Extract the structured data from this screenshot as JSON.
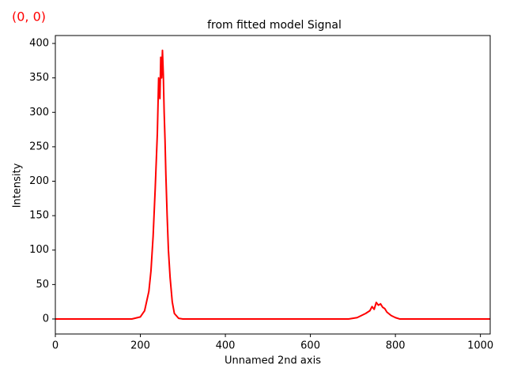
{
  "chart_data": {
    "type": "line",
    "title": "from fitted model Signal",
    "annotation": "(0, 0)",
    "x_label": "Unnamed 2nd axis",
    "y_label": "Intensity",
    "xlim": [
      0,
      1023
    ],
    "ylim": [
      -21.8,
      411.5
    ],
    "xticks": [
      0,
      200,
      400,
      600,
      800,
      1000
    ],
    "yticks": [
      0,
      50,
      100,
      150,
      200,
      250,
      300,
      350,
      400
    ],
    "grid": false,
    "series": [
      {
        "color": "#ff0000",
        "x": [
          0,
          100,
          180,
          200,
          210,
          220,
          225,
          230,
          235,
          240,
          243,
          246,
          248,
          250,
          252,
          254,
          256,
          258,
          260,
          263,
          266,
          270,
          275,
          280,
          290,
          300,
          400,
          600,
          690,
          700,
          710,
          720,
          730,
          740,
          745,
          750,
          755,
          760,
          765,
          770,
          775,
          780,
          790,
          800,
          810,
          900,
          1023
        ],
        "values": [
          0,
          0,
          0,
          3,
          12,
          40,
          70,
          120,
          190,
          270,
          350,
          320,
          380,
          350,
          390,
          355,
          300,
          260,
          210,
          150,
          100,
          60,
          25,
          8,
          1,
          0,
          0,
          0,
          0,
          1,
          2,
          5,
          8,
          12,
          18,
          14,
          24,
          20,
          22,
          17,
          15,
          10,
          5,
          2,
          0,
          0,
          0
        ]
      }
    ]
  }
}
